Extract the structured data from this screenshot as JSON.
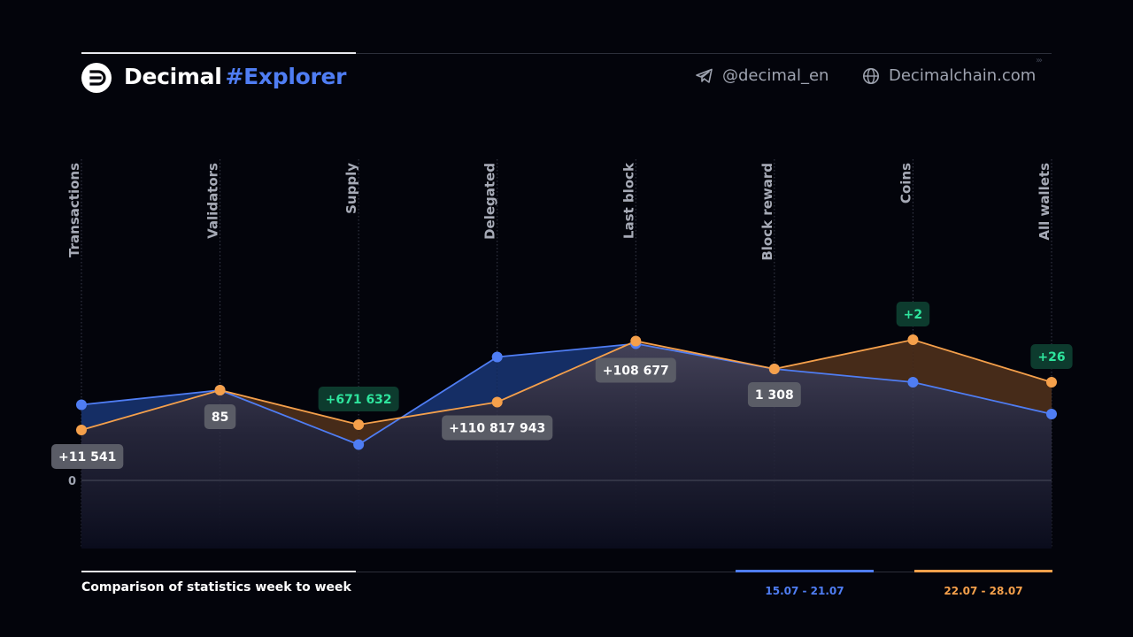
{
  "header": {
    "brand": "Decimal",
    "brand_accent": "#Explorer",
    "telegram_handle": "@decimal_en",
    "website": "Decimalchain.com",
    "telegram_icon": "telegram-icon",
    "globe_icon": "globe-icon",
    "logo_icon": "decimal-logo-icon"
  },
  "chart_data": {
    "type": "area",
    "categories": [
      "Transactions",
      "Validators",
      "Supply",
      "Delegated",
      "Last block",
      "Block reward",
      "Coins",
      "All wallets"
    ],
    "zero_label": "0",
    "series": [
      {
        "name": "15.07 - 21.07",
        "color": "#4f7df3",
        "values": [
          0.57,
          0.68,
          0.27,
          0.93,
          1.03,
          0.84,
          0.74,
          0.5
        ]
      },
      {
        "name": "22.07 - 28.07",
        "color": "#f5a04b",
        "values": [
          0.38,
          0.68,
          0.42,
          0.59,
          1.05,
          0.84,
          1.06,
          0.74
        ]
      }
    ],
    "annotations": [
      {
        "category": "Transactions",
        "text": "+11 541",
        "style": "gray"
      },
      {
        "category": "Validators",
        "text": "85",
        "style": "gray"
      },
      {
        "category": "Supply",
        "text": "+671 632",
        "style": "green"
      },
      {
        "category": "Delegated",
        "text": "+110 817 943",
        "style": "gray"
      },
      {
        "category": "Last block",
        "text": "+108 677",
        "style": "gray"
      },
      {
        "category": "Block reward",
        "text": "1 308",
        "style": "gray"
      },
      {
        "category": "Coins",
        "text": "+2",
        "style": "green"
      },
      {
        "category": "All wallets",
        "text": "+26",
        "style": "green"
      }
    ],
    "ylim": [
      -0.44,
      2.06
    ],
    "grid": "vertical dotted lines at categories"
  },
  "footer": {
    "caption": "Comparison of statistics week to week",
    "legend_1": "15.07 - 21.07",
    "legend_2": "22.07 - 28.07"
  }
}
